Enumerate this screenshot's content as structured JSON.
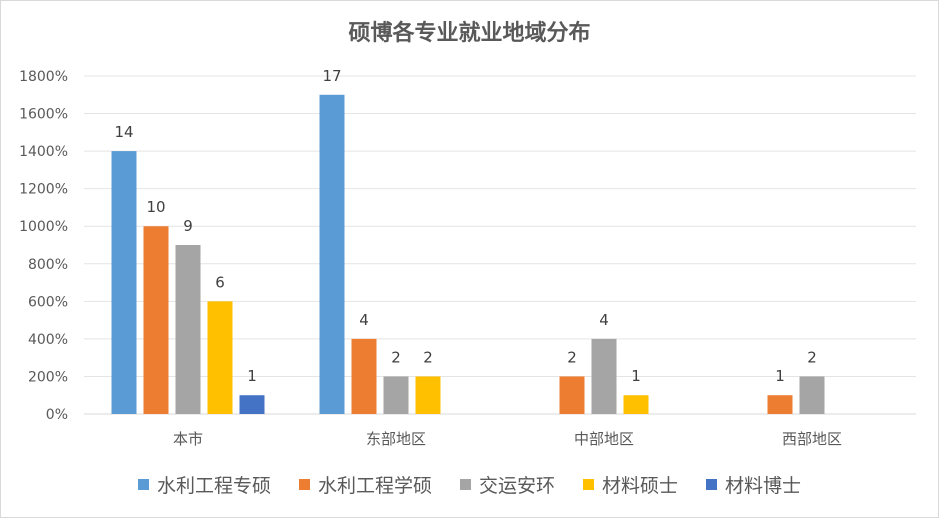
{
  "chart_data": {
    "type": "bar",
    "title": "硕博各专业就业地域分布",
    "categories": [
      "本市",
      "东部地区",
      "中部地区",
      "西部地区"
    ],
    "y_ticks": [
      "0%",
      "200%",
      "400%",
      "600%",
      "800%",
      "1000%",
      "1200%",
      "1400%",
      "1600%",
      "1800%"
    ],
    "ylim": [
      0,
      18
    ],
    "grid": true,
    "legend_position": "bottom",
    "series": [
      {
        "name": "水利工程专硕",
        "color": "#5b9bd5",
        "values": [
          14,
          17,
          null,
          null
        ]
      },
      {
        "name": "水利工程学硕",
        "color": "#ed7d31",
        "values": [
          10,
          4,
          2,
          1
        ]
      },
      {
        "name": "交运安环",
        "color": "#a5a5a5",
        "values": [
          9,
          2,
          4,
          2
        ]
      },
      {
        "name": "材料硕士",
        "color": "#ffc000",
        "values": [
          6,
          2,
          1,
          null
        ]
      },
      {
        "name": "材料博士",
        "color": "#4472c4",
        "values": [
          1,
          null,
          null,
          null
        ]
      }
    ]
  }
}
